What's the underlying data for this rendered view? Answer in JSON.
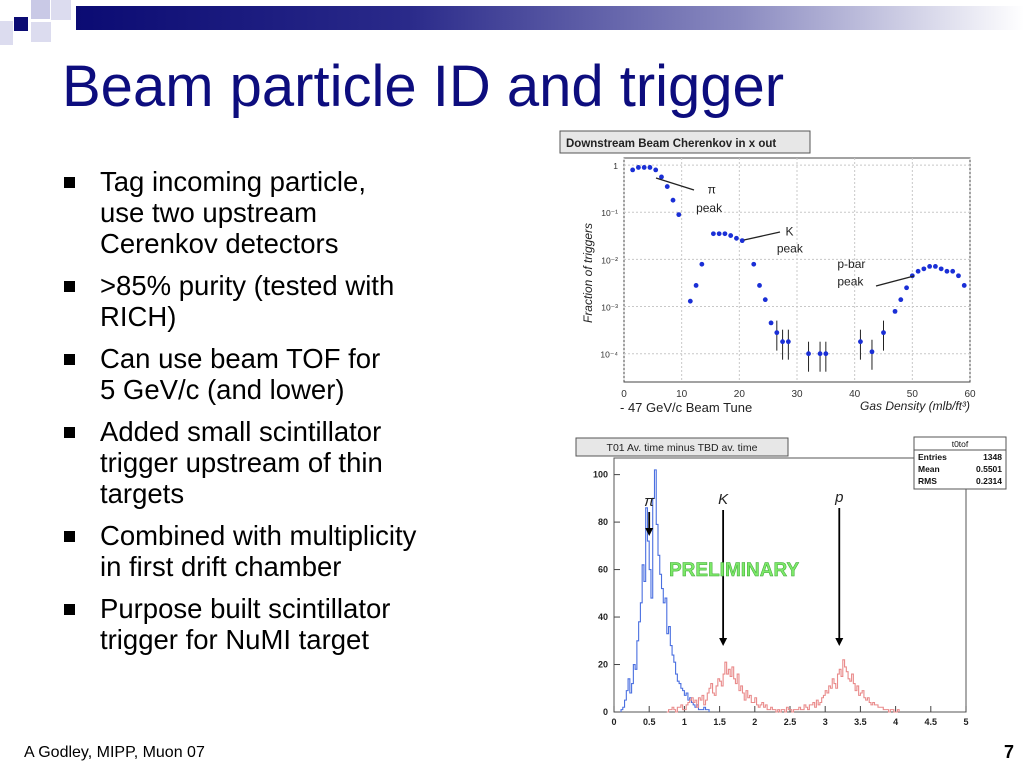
{
  "slide": {
    "title": "Beam particle ID and trigger",
    "bullets": [
      "Tag incoming particle,\nuse two upstream\nCerenkov detectors",
      ">85% purity (tested with\nRICH)",
      "Can use beam TOF for\n5 GeV/c (and lower)",
      "Added small scintillator\ntrigger upstream of thin\ntargets",
      "Combined with multiplicity\nin first drift chamber",
      "Purpose built scintillator\ntrigger for NuMI target"
    ],
    "footer_left": "A Godley, MIPP, Muon 07",
    "page_number": "7",
    "colors": {
      "title": "#0d0d7e",
      "bullet_marker": "#000000"
    }
  },
  "chart_data": [
    {
      "type": "scatter",
      "title": "Downstream Beam Cherenkov in x out",
      "ylabel": "Fraction of triggers",
      "xlabel": "Gas Density (mlb/ft³)",
      "xlabel_left": "- 47 GeV/c Beam Tune",
      "x_ticks": [
        "0",
        "10",
        "20",
        "30",
        "40",
        "50",
        "60"
      ],
      "y_ticks": [
        "1",
        "10⁻¹",
        "10⁻²",
        "10⁻³",
        "10⁻⁴"
      ],
      "xlim": [
        0,
        60
      ],
      "ylim_log10": [
        -4.6,
        0.15
      ],
      "log_y": true,
      "grid": true,
      "marker_color": "#1a2fd6",
      "annotations": [
        {
          "text": "π",
          "x": 14.5,
          "y": 0.25
        },
        {
          "text": "peak",
          "x": 12.5,
          "y": 0.1
        },
        {
          "text": "K",
          "x": 28,
          "y": 0.032
        },
        {
          "text": "peak",
          "x": 26.5,
          "y": 0.014
        },
        {
          "text": "p-bar",
          "x": 37,
          "y": 0.0065
        },
        {
          "text": "peak",
          "x": 37,
          "y": 0.0028
        }
      ],
      "points": [
        {
          "x": 1.5,
          "y": 0.79
        },
        {
          "x": 2.5,
          "y": 0.89
        },
        {
          "x": 3.5,
          "y": 0.89
        },
        {
          "x": 4.5,
          "y": 0.89
        },
        {
          "x": 5.5,
          "y": 0.79
        },
        {
          "x": 6.5,
          "y": 0.56
        },
        {
          "x": 7.5,
          "y": 0.35
        },
        {
          "x": 8.5,
          "y": 0.18
        },
        {
          "x": 9.5,
          "y": 0.089
        },
        {
          "x": 11.5,
          "y": 0.0013
        },
        {
          "x": 12.5,
          "y": 0.0028
        },
        {
          "x": 13.5,
          "y": 0.0079
        },
        {
          "x": 15.5,
          "y": 0.035
        },
        {
          "x": 16.5,
          "y": 0.035
        },
        {
          "x": 17.5,
          "y": 0.035
        },
        {
          "x": 18.5,
          "y": 0.032
        },
        {
          "x": 19.5,
          "y": 0.028
        },
        {
          "x": 20.5,
          "y": 0.025
        },
        {
          "x": 22.5,
          "y": 0.0079
        },
        {
          "x": 23.5,
          "y": 0.0028
        },
        {
          "x": 24.5,
          "y": 0.0014
        },
        {
          "x": 25.5,
          "y": 0.00045
        },
        {
          "x": 26.5,
          "y": 0.00028
        },
        {
          "x": 27.5,
          "y": 0.00018
        },
        {
          "x": 28.5,
          "y": 0.00018
        },
        {
          "x": 32,
          "y": 0.0001
        },
        {
          "x": 34,
          "y": 0.0001
        },
        {
          "x": 35,
          "y": 0.0001
        },
        {
          "x": 41,
          "y": 0.00018
        },
        {
          "x": 43,
          "y": 0.00011
        },
        {
          "x": 45,
          "y": 0.00028
        },
        {
          "x": 47,
          "y": 0.00079
        },
        {
          "x": 48,
          "y": 0.0014
        },
        {
          "x": 49,
          "y": 0.0025
        },
        {
          "x": 50,
          "y": 0.0045
        },
        {
          "x": 51,
          "y": 0.0056
        },
        {
          "x": 52,
          "y": 0.0063
        },
        {
          "x": 53,
          "y": 0.0071
        },
        {
          "x": 54,
          "y": 0.0071
        },
        {
          "x": 55,
          "y": 0.0063
        },
        {
          "x": 56,
          "y": 0.0056
        },
        {
          "x": 57,
          "y": 0.0056
        },
        {
          "x": 58,
          "y": 0.0045
        },
        {
          "x": 59,
          "y": 0.0028
        }
      ]
    },
    {
      "type": "histogram",
      "title": "T01 Av. time minus TBD av. time",
      "stats": {
        "name": "t0tof",
        "Entries": "1348",
        "Mean": "0.5501",
        "RMS": "0.2314"
      },
      "x_ticks": [
        "0",
        "0.5",
        "1",
        "1.5",
        "2",
        "2.5",
        "3",
        "3.5",
        "4",
        "4.5",
        "5"
      ],
      "y_ticks": [
        "0",
        "20",
        "40",
        "60",
        "80",
        "100"
      ],
      "xlim": [
        0,
        5
      ],
      "ylim": [
        0,
        107
      ],
      "watermark": "PRELIMINARY",
      "peak_labels": [
        {
          "text": "π",
          "x": 0.5
        },
        {
          "text": "K",
          "x": 1.55
        },
        {
          "text": "p",
          "x": 3.2
        }
      ],
      "series": [
        {
          "name": "π",
          "color": "#4a6fe0",
          "x_start": 0.1,
          "bin_width": 0.025,
          "values": [
            1,
            2,
            5,
            9,
            14,
            8,
            12,
            20,
            18,
            30,
            38,
            46,
            62,
            55,
            86,
            72,
            60,
            48,
            90,
            102,
            79,
            66,
            58,
            52,
            46,
            48,
            33,
            36,
            28,
            24,
            21,
            16,
            13,
            12,
            10,
            9,
            7,
            8,
            5,
            6,
            4,
            3,
            2,
            3,
            1,
            1,
            1,
            2,
            1,
            1
          ]
        },
        {
          "name": "K and p",
          "color": "#e98a8a",
          "x_start": 0.75,
          "bin_width": 0.025,
          "values": [
            0,
            1,
            1,
            2,
            1,
            0,
            2,
            2,
            3,
            1,
            1,
            3,
            4,
            5,
            6,
            4,
            5,
            2,
            6,
            5,
            7,
            3,
            5,
            8,
            10,
            12,
            8,
            7,
            11,
            14,
            13,
            11,
            16,
            21,
            16,
            18,
            15,
            19,
            14,
            12,
            16,
            9,
            11,
            8,
            5,
            9,
            6,
            7,
            4,
            4,
            6,
            3,
            2,
            3,
            4,
            2,
            3,
            1,
            1,
            2,
            1,
            1,
            0,
            1,
            0,
            1,
            1,
            0,
            2,
            1,
            1,
            0,
            1,
            1,
            1,
            2,
            1,
            1,
            3,
            2,
            1,
            3,
            3,
            4,
            2,
            5,
            3,
            4,
            6,
            7,
            9,
            8,
            11,
            10,
            14,
            12,
            10,
            16,
            18,
            15,
            22,
            19,
            17,
            14,
            13,
            16,
            12,
            9,
            11,
            7,
            8,
            9,
            6,
            5,
            6,
            4,
            3,
            4,
            3,
            3,
            2,
            2,
            2,
            1,
            1,
            1,
            0,
            1,
            1,
            0,
            0,
            1
          ]
        }
      ]
    }
  ]
}
